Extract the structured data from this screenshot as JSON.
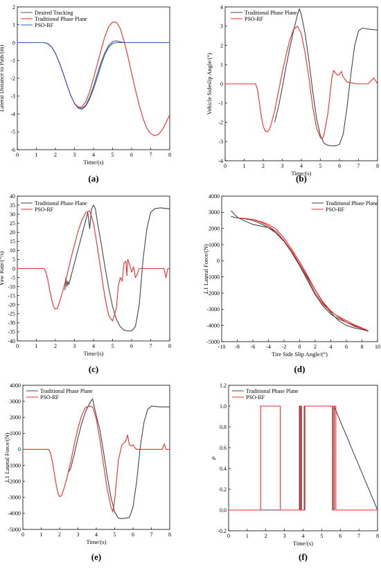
{
  "chart_data": [
    {
      "id": "a",
      "panel_label": "(a)",
      "type": "line",
      "xlabel": "Time/(s)",
      "ylabel": "Lateral Distance to Path/(m)",
      "xlim": [
        0,
        8
      ],
      "ylim": [
        -6,
        2
      ],
      "xticks": [
        0,
        1,
        2,
        3,
        4,
        5,
        6,
        7,
        8
      ],
      "yticks": [
        2,
        1,
        0,
        -1,
        -2,
        -3,
        -4,
        -5,
        -6
      ],
      "grid": false,
      "legend": "top-left",
      "series": [
        {
          "name": "Desired Tracking",
          "color": "#555555",
          "x": [
            0,
            1.4,
            1.6,
            1.8,
            2.0,
            2.2,
            2.4,
            2.6,
            2.8,
            3.0,
            3.2,
            3.4,
            3.6,
            3.8,
            4.0,
            4.2,
            4.4,
            4.6,
            4.8,
            5.0,
            5.2,
            5.4,
            5.6,
            5.8,
            6.0,
            8.0
          ],
          "y": [
            0,
            0,
            -0.05,
            -0.25,
            -0.6,
            -1.1,
            -1.7,
            -2.35,
            -2.95,
            -3.4,
            -3.65,
            -3.68,
            -3.5,
            -3.05,
            -2.45,
            -1.75,
            -1.1,
            -0.55,
            -0.15,
            0.05,
            0.1,
            0.05,
            0.0,
            0.0,
            0.0,
            0.0
          ]
        },
        {
          "name": "Traditional Phase Plane",
          "color": "#ee2a2a",
          "x": [
            0,
            1.4,
            1.6,
            1.8,
            2.0,
            2.2,
            2.4,
            2.6,
            2.8,
            3.0,
            3.2,
            3.4,
            3.6,
            3.8,
            4.0,
            4.2,
            4.4,
            4.6,
            4.8,
            5.0,
            5.2,
            5.4,
            5.6,
            5.8,
            6.0,
            6.2,
            6.4,
            6.6,
            6.8,
            7.0,
            7.2,
            7.4,
            7.6,
            7.8,
            8.0
          ],
          "y": [
            0,
            0,
            -0.05,
            -0.25,
            -0.6,
            -1.1,
            -1.7,
            -2.35,
            -2.95,
            -3.4,
            -3.62,
            -3.6,
            -3.3,
            -2.75,
            -2.0,
            -1.2,
            -0.4,
            0.35,
            0.9,
            1.15,
            1.15,
            0.8,
            0.1,
            -0.75,
            -1.7,
            -2.65,
            -3.5,
            -4.25,
            -4.8,
            -5.1,
            -5.22,
            -5.15,
            -4.9,
            -4.5,
            -4.05
          ]
        },
        {
          "name": "PSO-RF",
          "color": "#2b5fbf",
          "x": [
            0,
            1.4,
            1.6,
            1.8,
            2.0,
            2.2,
            2.4,
            2.6,
            2.8,
            3.0,
            3.2,
            3.4,
            3.6,
            3.8,
            4.0,
            4.2,
            4.4,
            4.6,
            4.8,
            5.0,
            5.2,
            5.4,
            5.6,
            5.8,
            6.0,
            8.0
          ],
          "y": [
            0,
            0,
            -0.05,
            -0.25,
            -0.6,
            -1.1,
            -1.7,
            -2.35,
            -2.95,
            -3.42,
            -3.68,
            -3.72,
            -3.55,
            -3.15,
            -2.6,
            -1.95,
            -1.25,
            -0.65,
            -0.25,
            -0.05,
            0.0,
            0.0,
            0.0,
            0.0,
            0.0,
            0.0
          ]
        }
      ]
    },
    {
      "id": "b",
      "panel_label": "(b)",
      "type": "line",
      "xlabel": "Time/(s)",
      "ylabel": "Vehicle Sideslip Angle/(°)",
      "xlim": [
        0,
        8
      ],
      "ylim": [
        -4,
        4
      ],
      "xticks": [
        0,
        1,
        2,
        3,
        4,
        5,
        6,
        7,
        8
      ],
      "yticks": [
        4,
        3,
        2,
        1,
        0,
        -1,
        -2,
        -3,
        -4
      ],
      "grid": false,
      "legend": "top-left",
      "series": [
        {
          "name": "Traditional Phase Plane",
          "color": "#444444",
          "x": [
            2.6,
            2.8,
            3.0,
            3.2,
            3.4,
            3.6,
            3.8,
            3.9,
            4.0,
            4.2,
            4.4,
            4.6,
            4.8,
            5.0,
            5.2,
            5.4,
            5.6,
            5.8,
            6.0,
            6.2,
            6.4,
            6.6,
            6.8,
            7.0,
            7.2,
            7.5,
            8.0
          ],
          "y": [
            -2.0,
            -1.2,
            -0.2,
            0.9,
            1.9,
            2.8,
            3.6,
            3.9,
            3.6,
            2.6,
            1.2,
            -0.4,
            -1.8,
            -2.7,
            -3.1,
            -3.2,
            -3.22,
            -3.22,
            -3.15,
            -2.6,
            -1.2,
            0.5,
            2.0,
            2.75,
            2.9,
            2.85,
            2.8
          ]
        },
        {
          "name": "PSO-RF",
          "color": "#ee2a2a",
          "x": [
            0,
            1.6,
            1.7,
            1.8,
            1.9,
            2.0,
            2.1,
            2.2,
            2.3,
            2.4,
            2.6,
            2.8,
            3.0,
            3.2,
            3.4,
            3.6,
            3.8,
            4.0,
            4.2,
            4.4,
            4.6,
            4.8,
            5.0,
            5.1,
            5.2,
            5.4,
            5.6,
            5.7,
            5.8,
            5.9,
            6.0,
            6.1,
            6.2,
            6.4,
            6.6,
            7.0,
            7.5,
            7.8,
            7.9,
            8.0
          ],
          "y": [
            0,
            0,
            -0.3,
            -1.0,
            -1.7,
            -2.2,
            -2.45,
            -2.5,
            -2.4,
            -2.15,
            -1.4,
            -0.4,
            0.6,
            1.5,
            2.3,
            2.85,
            3.0,
            2.6,
            1.6,
            0.3,
            -1.2,
            -2.3,
            -2.8,
            -2.85,
            -2.6,
            -1.5,
            0.3,
            0.7,
            0.55,
            0.45,
            0.5,
            0.65,
            0.35,
            0.1,
            0.05,
            0.0,
            0.0,
            0.3,
            0.15,
            0.0
          ]
        }
      ]
    },
    {
      "id": "c",
      "panel_label": "(c)",
      "type": "line",
      "xlabel": "Time/(s)",
      "ylabel": "Yaw Rate/(°/s)",
      "xlim": [
        0,
        8
      ],
      "ylim": [
        -40,
        40
      ],
      "xticks": [
        0,
        1,
        2,
        3,
        4,
        5,
        6,
        7,
        8
      ],
      "yticks": [
        40,
        35,
        30,
        25,
        20,
        15,
        10,
        5,
        0,
        -5,
        -10,
        -15,
        -20,
        -25,
        -30,
        -35,
        -40
      ],
      "grid": false,
      "legend": "top-left",
      "series": [
        {
          "name": "Traditional Phase Plane",
          "color": "#444444",
          "x": [
            2.5,
            2.55,
            2.6,
            2.65,
            2.7,
            2.8,
            3.0,
            3.2,
            3.4,
            3.6,
            3.7,
            3.8,
            3.85,
            3.9,
            4.0,
            4.1,
            4.2,
            4.4,
            4.6,
            4.8,
            5.0,
            5.2,
            5.4,
            5.6,
            5.8,
            6.0,
            6.2,
            6.4,
            6.6,
            6.8,
            7.0,
            7.2,
            7.5,
            8.0
          ],
          "y": [
            -12,
            -5,
            -10,
            -7,
            -9,
            -5,
            3,
            11,
            19,
            27,
            31,
            22,
            28,
            33,
            35,
            33,
            26,
            14,
            1,
            -11,
            -21,
            -28,
            -32,
            -34,
            -34.5,
            -34.5,
            -32,
            -20,
            5,
            22,
            31,
            33,
            33.5,
            33
          ]
        },
        {
          "name": "PSO-RF",
          "color": "#ee2a2a",
          "x": [
            0,
            1.4,
            1.5,
            1.6,
            1.7,
            1.8,
            1.9,
            2.0,
            2.1,
            2.2,
            2.4,
            2.6,
            2.8,
            3.0,
            3.2,
            3.4,
            3.6,
            3.8,
            4.0,
            4.2,
            4.4,
            4.6,
            4.8,
            5.0,
            5.2,
            5.3,
            5.4,
            5.5,
            5.6,
            5.7,
            5.75,
            5.8,
            5.9,
            6.0,
            6.1,
            6.2,
            6.3,
            6.4,
            6.6,
            7.0,
            7.4,
            7.7,
            7.8,
            7.9,
            8.0
          ],
          "y": [
            0,
            0,
            -2,
            -6,
            -12,
            -17,
            -21,
            -22.5,
            -22,
            -19,
            -12,
            -4,
            5,
            13,
            21,
            27,
            31,
            32,
            25,
            12,
            -2,
            -16,
            -26,
            -29,
            -22,
            -10,
            -5,
            -7,
            3,
            4,
            -4,
            5,
            2,
            -2,
            1,
            -5,
            -3,
            0,
            0,
            0,
            0,
            0,
            -5,
            0,
            0
          ]
        }
      ]
    },
    {
      "id": "d",
      "panel_label": "(d)",
      "type": "line",
      "xlabel": "Tire Side Slip Angle/(°)",
      "ylabel": "L1 Lateral Force/(N)",
      "xlim": [
        -10,
        10
      ],
      "ylim": [
        -5000,
        4000
      ],
      "xticks": [
        -10,
        -8,
        -6,
        -4,
        -2,
        0,
        2,
        4,
        6,
        8,
        10
      ],
      "yticks": [
        4000,
        3000,
        2000,
        1000,
        0,
        -1000,
        -2000,
        -3000,
        -4000,
        -5000
      ],
      "grid": false,
      "legend": "top-right",
      "series": [
        {
          "name": "Traditional Phase Plane",
          "color": "#444444",
          "x": [
            -8.8,
            -8.5,
            -8.0,
            -7.0,
            -6.0,
            -5.0,
            -4.0,
            -3.0,
            -2.0,
            -1.0,
            0.0,
            1.0,
            2.0,
            3.0,
            4.0,
            5.0,
            6.0,
            7.0,
            8.0,
            8.8,
            8.0,
            7.0,
            6.0,
            5.0,
            4.0,
            3.0,
            2.0,
            1.0,
            0.0,
            -1.0,
            -2.0,
            -3.0,
            -4.0,
            -5.0,
            -6.0,
            -7.0,
            -8.0,
            -8.5,
            -8.8
          ],
          "y": [
            3100,
            2950,
            2700,
            2450,
            2250,
            2150,
            2050,
            1800,
            1200,
            500,
            -200,
            -1000,
            -1800,
            -2600,
            -3200,
            -3700,
            -4000,
            -4150,
            -4250,
            -4350,
            -4200,
            -4000,
            -3800,
            -3600,
            -3300,
            -2800,
            -2100,
            -1200,
            -300,
            500,
            1200,
            1700,
            2050,
            2300,
            2500,
            2600,
            2650,
            2700,
            2750
          ]
        },
        {
          "name": "PSO-RF",
          "color": "#ee2a2a",
          "x": [
            -8.0,
            -7.0,
            -6.0,
            -5.0,
            -4.0,
            -3.0,
            -2.0,
            -1.0,
            0.0,
            1.0,
            2.0,
            3.0,
            4.0,
            5.0,
            6.0,
            7.0,
            8.0,
            8.7,
            8.0,
            7.0,
            6.0,
            5.0,
            4.0,
            3.0,
            2.0,
            1.0,
            0.0,
            -1.0,
            -2.0,
            -3.0,
            -4.0,
            -5.0,
            -6.0,
            -7.0,
            -8.0
          ],
          "y": [
            2650,
            2620,
            2550,
            2430,
            2250,
            1950,
            1400,
            700,
            -50,
            -900,
            -1800,
            -2550,
            -3100,
            -3500,
            -3800,
            -4050,
            -4200,
            -4300,
            -4150,
            -3950,
            -3700,
            -3450,
            -3150,
            -2700,
            -2000,
            -1100,
            -200,
            600,
            1250,
            1800,
            2150,
            2400,
            2550,
            2620,
            2650
          ]
        }
      ]
    },
    {
      "id": "e",
      "panel_label": "(e)",
      "type": "line",
      "xlabel": "Time/(s)",
      "ylabel": "L1 Lateral Force/(N)",
      "xlim": [
        0,
        8
      ],
      "ylim": [
        -5000,
        4000
      ],
      "xticks": [
        0,
        1,
        2,
        3,
        4,
        5,
        6,
        7,
        8
      ],
      "yticks": [
        4000,
        3000,
        2000,
        1000,
        0,
        -1000,
        -2000,
        -3000,
        -4000,
        -5000
      ],
      "grid": false,
      "legend": "top-left",
      "series": [
        {
          "name": "Traditional Phase Plane",
          "color": "#444444",
          "x": [
            2.5,
            2.6,
            2.8,
            3.0,
            3.2,
            3.4,
            3.6,
            3.7,
            3.8,
            3.9,
            4.0,
            4.2,
            4.4,
            4.6,
            4.8,
            5.0,
            5.2,
            5.4,
            5.6,
            5.8,
            6.0,
            6.2,
            6.4,
            6.6,
            6.8,
            7.0,
            7.5,
            8.0
          ],
          "y": [
            -1400,
            -1200,
            -300,
            700,
            1600,
            2300,
            2800,
            3000,
            3150,
            2600,
            2100,
            1200,
            -200,
            -1700,
            -3000,
            -3900,
            -4300,
            -4320,
            -4300,
            -4250,
            -3600,
            -2000,
            200,
            1700,
            2500,
            2700,
            2650,
            2650
          ]
        },
        {
          "name": "PSO-RF",
          "color": "#ee2a2a",
          "x": [
            0,
            1.4,
            1.5,
            1.6,
            1.7,
            1.8,
            1.9,
            2.0,
            2.1,
            2.2,
            2.4,
            2.6,
            2.8,
            3.0,
            3.2,
            3.4,
            3.6,
            3.8,
            4.0,
            4.2,
            4.4,
            4.6,
            4.8,
            4.9,
            5.0,
            5.2,
            5.4,
            5.6,
            5.7,
            5.8,
            5.9,
            6.0,
            6.1,
            6.2,
            6.4,
            7.0,
            7.6,
            7.7,
            7.8,
            8.0
          ],
          "y": [
            0,
            0,
            -200,
            -700,
            -1400,
            -2100,
            -2700,
            -2950,
            -2900,
            -2600,
            -1800,
            -800,
            300,
            1300,
            2100,
            2600,
            2700,
            2650,
            1900,
            600,
            -1000,
            -2500,
            -3600,
            -3900,
            -3200,
            -700,
            300,
            500,
            900,
            300,
            200,
            300,
            100,
            0,
            0,
            0,
            0,
            350,
            0,
            0
          ]
        }
      ]
    },
    {
      "id": "f",
      "panel_label": "(f)",
      "type": "line",
      "xlabel": "Time/(s)",
      "ylabel": "ρ",
      "xlim": [
        0,
        8
      ],
      "ylim": [
        -0.2,
        1.2
      ],
      "xticks": [
        0,
        1,
        2,
        3,
        4,
        5,
        6,
        7,
        8
      ],
      "yticks": [
        "1.2",
        "1.0",
        "0.8",
        "0.6",
        "0.4",
        "0.2",
        "0.0",
        "-0.2"
      ],
      "grid": false,
      "legend": "top-left",
      "series": [
        {
          "name": "Traditional Phase Plane",
          "color": "#444444",
          "x": [
            0,
            3.8,
            3.8,
            3.88,
            3.88,
            4.06,
            4.06,
            5.58,
            5.58,
            5.66,
            5.66,
            8.0
          ],
          "y": [
            0,
            0,
            1,
            1,
            0,
            0,
            1,
            1,
            0,
            0,
            1,
            0
          ]
        },
        {
          "name": "PSO-RF",
          "color": "#ee2a2a",
          "x": [
            0,
            1.72,
            1.72,
            2.78,
            2.78,
            3.84,
            3.84,
            3.92,
            3.92,
            4.1,
            4.1,
            5.6,
            5.6,
            5.68,
            5.68,
            5.76,
            5.76,
            8.0
          ],
          "y": [
            0,
            0,
            1,
            1,
            0,
            0,
            1,
            1,
            0,
            0,
            1,
            1,
            0,
            0,
            1,
            1,
            0,
            0
          ]
        }
      ]
    }
  ]
}
